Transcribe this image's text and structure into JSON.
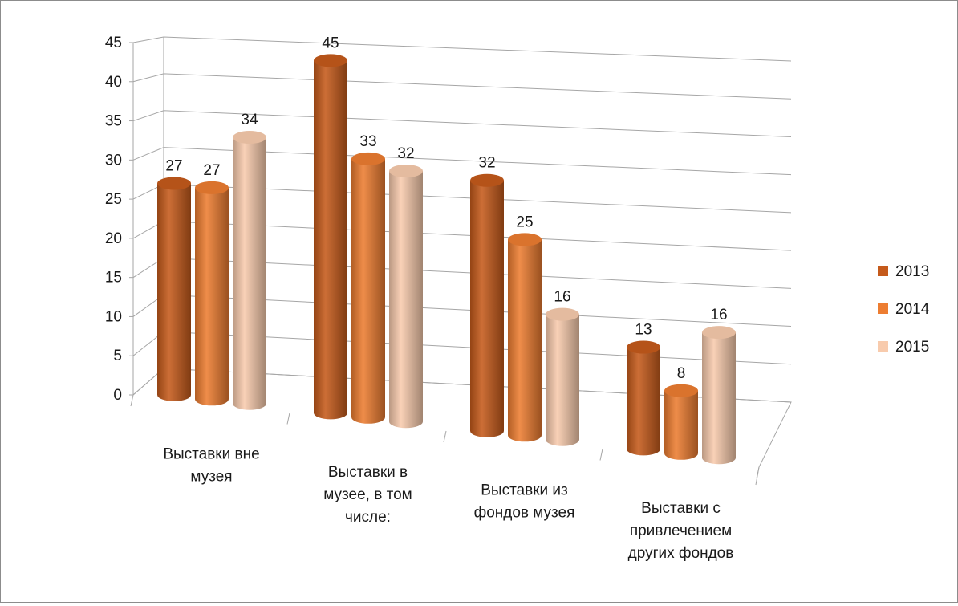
{
  "chart_data": {
    "type": "bar",
    "style": "3d-cylinder",
    "title": "",
    "xlabel": "",
    "ylabel": "",
    "ylim": [
      0,
      45
    ],
    "yticks": [
      0,
      5,
      10,
      15,
      20,
      25,
      30,
      35,
      40,
      45
    ],
    "grid": true,
    "legend_position": "right",
    "categories": [
      [
        "Выставки вне",
        "музея"
      ],
      [
        "Выставки в",
        "музее, в том",
        "числе:"
      ],
      [
        "Выставки из",
        "фондов музея"
      ],
      [
        "Выставки с",
        "привлечением",
        "других фондов"
      ]
    ],
    "series": [
      {
        "name": "2013",
        "color": "#c55a1b",
        "values": [
          27,
          45,
          32,
          13
        ]
      },
      {
        "name": "2014",
        "color": "#ed7d31",
        "values": [
          27,
          33,
          25,
          8
        ]
      },
      {
        "name": "2015",
        "color": "#f8cbad",
        "values": [
          34,
          32,
          16,
          16
        ]
      }
    ]
  }
}
